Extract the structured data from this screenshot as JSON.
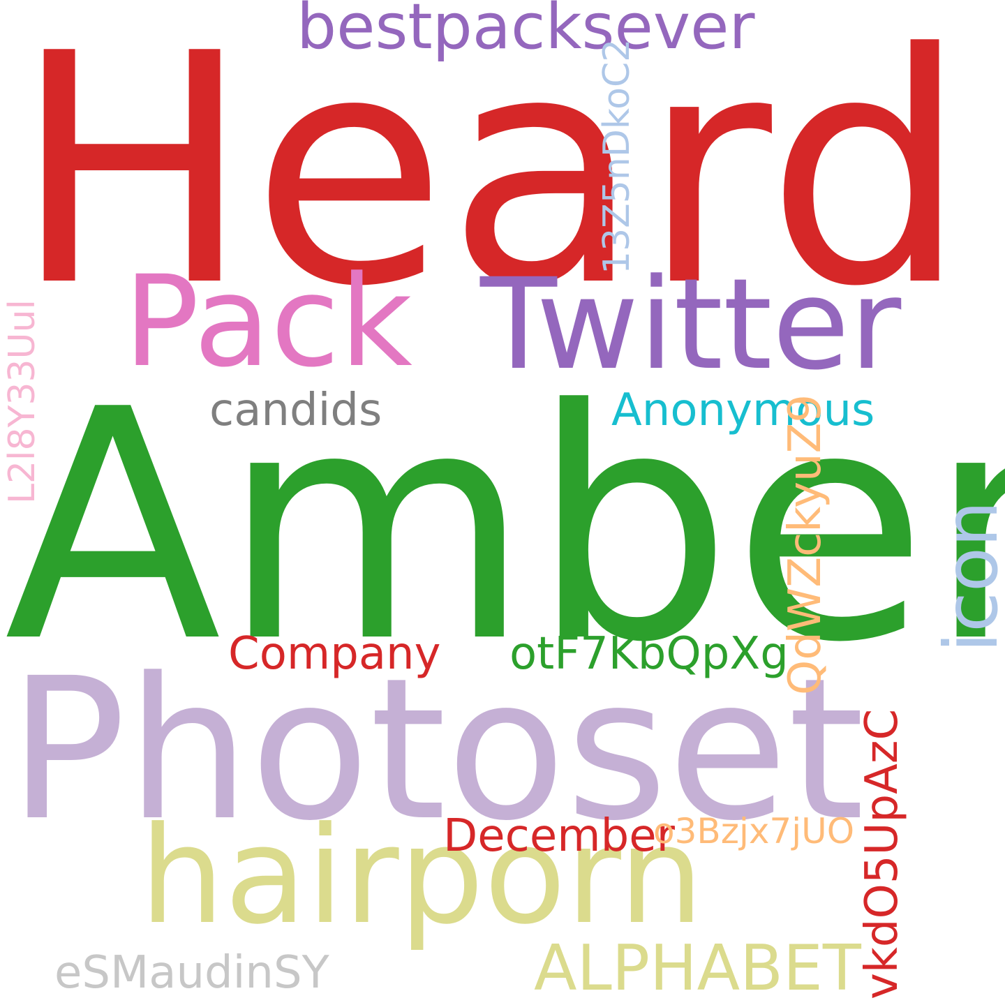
{
  "words": {
    "heard": {
      "text": "Heard",
      "color": "#d62728"
    },
    "amber": {
      "text": "Amber",
      "color": "#2ca02c"
    },
    "photoset": {
      "text": "Photoset",
      "color": "#c5b0d5"
    },
    "twitter": {
      "text": "Twitter",
      "color": "#9467bd"
    },
    "hairporn": {
      "text": "hairporn",
      "color": "#dbdb8d"
    },
    "pack": {
      "text": "Pack",
      "color": "#e377c2"
    },
    "bestpacksever": {
      "text": "bestpacksever",
      "color": "#9467bd"
    },
    "alphabet": {
      "text": "ALPHABET",
      "color": "#dbdb8d"
    },
    "anonymous": {
      "text": "Anonymous",
      "color": "#17becf"
    },
    "candids": {
      "text": "candids",
      "color": "#7f7f7f"
    },
    "company": {
      "text": "Company",
      "color": "#d62728"
    },
    "otf": {
      "text": "otF7KbQpXg",
      "color": "#2ca02c"
    },
    "december": {
      "text": "December",
      "color": "#d62728"
    },
    "o3b": {
      "text": "o3Bzjx7jUO",
      "color": "#ffbb78"
    },
    "esma": {
      "text": "eSMaudinSY",
      "color": "#c7c7c7"
    },
    "z13": {
      "text": "13Z5nDkoC2",
      "color": "#aec7e8"
    },
    "l2l8": {
      "text": "L2l8Y33Uul",
      "color": "#f7b6d2"
    },
    "qdw": {
      "text": "QdWZckyuZ9",
      "color": "#ffbb78"
    },
    "icon": {
      "text": "icon",
      "color": "#aec7e8"
    },
    "vkd": {
      "text": "vkdO5UpAzC",
      "color": "#d62728"
    }
  }
}
